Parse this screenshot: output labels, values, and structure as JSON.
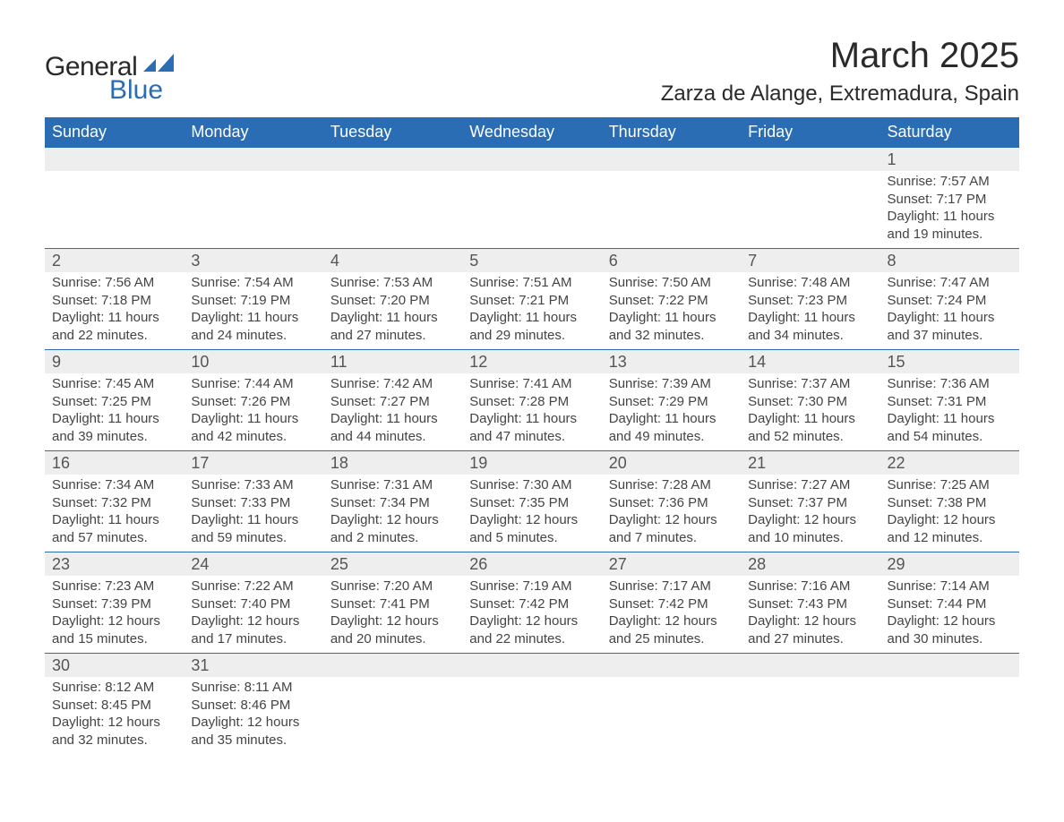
{
  "logo": {
    "text_general": "General",
    "text_blue": "Blue",
    "shape_color": "#2a6db5"
  },
  "title": "March 2025",
  "location": "Zarza de Alange, Extremadura, Spain",
  "colors": {
    "header_bg": "#2a6db5",
    "header_text": "#ffffff",
    "daynum_bg": "#eeeeee",
    "text": "#444444",
    "border": "#2a6db5"
  },
  "typography": {
    "title_fontsize": 40,
    "location_fontsize": 24,
    "weekday_fontsize": 18,
    "daynum_fontsize": 18,
    "content_fontsize": 15
  },
  "weekdays": [
    "Sunday",
    "Monday",
    "Tuesday",
    "Wednesday",
    "Thursday",
    "Friday",
    "Saturday"
  ],
  "weeks": [
    [
      null,
      null,
      null,
      null,
      null,
      null,
      {
        "day": "1",
        "sunrise": "Sunrise: 7:57 AM",
        "sunset": "Sunset: 7:17 PM",
        "daylight1": "Daylight: 11 hours",
        "daylight2": "and 19 minutes."
      }
    ],
    [
      {
        "day": "2",
        "sunrise": "Sunrise: 7:56 AM",
        "sunset": "Sunset: 7:18 PM",
        "daylight1": "Daylight: 11 hours",
        "daylight2": "and 22 minutes."
      },
      {
        "day": "3",
        "sunrise": "Sunrise: 7:54 AM",
        "sunset": "Sunset: 7:19 PM",
        "daylight1": "Daylight: 11 hours",
        "daylight2": "and 24 minutes."
      },
      {
        "day": "4",
        "sunrise": "Sunrise: 7:53 AM",
        "sunset": "Sunset: 7:20 PM",
        "daylight1": "Daylight: 11 hours",
        "daylight2": "and 27 minutes."
      },
      {
        "day": "5",
        "sunrise": "Sunrise: 7:51 AM",
        "sunset": "Sunset: 7:21 PM",
        "daylight1": "Daylight: 11 hours",
        "daylight2": "and 29 minutes."
      },
      {
        "day": "6",
        "sunrise": "Sunrise: 7:50 AM",
        "sunset": "Sunset: 7:22 PM",
        "daylight1": "Daylight: 11 hours",
        "daylight2": "and 32 minutes."
      },
      {
        "day": "7",
        "sunrise": "Sunrise: 7:48 AM",
        "sunset": "Sunset: 7:23 PM",
        "daylight1": "Daylight: 11 hours",
        "daylight2": "and 34 minutes."
      },
      {
        "day": "8",
        "sunrise": "Sunrise: 7:47 AM",
        "sunset": "Sunset: 7:24 PM",
        "daylight1": "Daylight: 11 hours",
        "daylight2": "and 37 minutes."
      }
    ],
    [
      {
        "day": "9",
        "sunrise": "Sunrise: 7:45 AM",
        "sunset": "Sunset: 7:25 PM",
        "daylight1": "Daylight: 11 hours",
        "daylight2": "and 39 minutes."
      },
      {
        "day": "10",
        "sunrise": "Sunrise: 7:44 AM",
        "sunset": "Sunset: 7:26 PM",
        "daylight1": "Daylight: 11 hours",
        "daylight2": "and 42 minutes."
      },
      {
        "day": "11",
        "sunrise": "Sunrise: 7:42 AM",
        "sunset": "Sunset: 7:27 PM",
        "daylight1": "Daylight: 11 hours",
        "daylight2": "and 44 minutes."
      },
      {
        "day": "12",
        "sunrise": "Sunrise: 7:41 AM",
        "sunset": "Sunset: 7:28 PM",
        "daylight1": "Daylight: 11 hours",
        "daylight2": "and 47 minutes."
      },
      {
        "day": "13",
        "sunrise": "Sunrise: 7:39 AM",
        "sunset": "Sunset: 7:29 PM",
        "daylight1": "Daylight: 11 hours",
        "daylight2": "and 49 minutes."
      },
      {
        "day": "14",
        "sunrise": "Sunrise: 7:37 AM",
        "sunset": "Sunset: 7:30 PM",
        "daylight1": "Daylight: 11 hours",
        "daylight2": "and 52 minutes."
      },
      {
        "day": "15",
        "sunrise": "Sunrise: 7:36 AM",
        "sunset": "Sunset: 7:31 PM",
        "daylight1": "Daylight: 11 hours",
        "daylight2": "and 54 minutes."
      }
    ],
    [
      {
        "day": "16",
        "sunrise": "Sunrise: 7:34 AM",
        "sunset": "Sunset: 7:32 PM",
        "daylight1": "Daylight: 11 hours",
        "daylight2": "and 57 minutes."
      },
      {
        "day": "17",
        "sunrise": "Sunrise: 7:33 AM",
        "sunset": "Sunset: 7:33 PM",
        "daylight1": "Daylight: 11 hours",
        "daylight2": "and 59 minutes."
      },
      {
        "day": "18",
        "sunrise": "Sunrise: 7:31 AM",
        "sunset": "Sunset: 7:34 PM",
        "daylight1": "Daylight: 12 hours",
        "daylight2": "and 2 minutes."
      },
      {
        "day": "19",
        "sunrise": "Sunrise: 7:30 AM",
        "sunset": "Sunset: 7:35 PM",
        "daylight1": "Daylight: 12 hours",
        "daylight2": "and 5 minutes."
      },
      {
        "day": "20",
        "sunrise": "Sunrise: 7:28 AM",
        "sunset": "Sunset: 7:36 PM",
        "daylight1": "Daylight: 12 hours",
        "daylight2": "and 7 minutes."
      },
      {
        "day": "21",
        "sunrise": "Sunrise: 7:27 AM",
        "sunset": "Sunset: 7:37 PM",
        "daylight1": "Daylight: 12 hours",
        "daylight2": "and 10 minutes."
      },
      {
        "day": "22",
        "sunrise": "Sunrise: 7:25 AM",
        "sunset": "Sunset: 7:38 PM",
        "daylight1": "Daylight: 12 hours",
        "daylight2": "and 12 minutes."
      }
    ],
    [
      {
        "day": "23",
        "sunrise": "Sunrise: 7:23 AM",
        "sunset": "Sunset: 7:39 PM",
        "daylight1": "Daylight: 12 hours",
        "daylight2": "and 15 minutes."
      },
      {
        "day": "24",
        "sunrise": "Sunrise: 7:22 AM",
        "sunset": "Sunset: 7:40 PM",
        "daylight1": "Daylight: 12 hours",
        "daylight2": "and 17 minutes."
      },
      {
        "day": "25",
        "sunrise": "Sunrise: 7:20 AM",
        "sunset": "Sunset: 7:41 PM",
        "daylight1": "Daylight: 12 hours",
        "daylight2": "and 20 minutes."
      },
      {
        "day": "26",
        "sunrise": "Sunrise: 7:19 AM",
        "sunset": "Sunset: 7:42 PM",
        "daylight1": "Daylight: 12 hours",
        "daylight2": "and 22 minutes."
      },
      {
        "day": "27",
        "sunrise": "Sunrise: 7:17 AM",
        "sunset": "Sunset: 7:42 PM",
        "daylight1": "Daylight: 12 hours",
        "daylight2": "and 25 minutes."
      },
      {
        "day": "28",
        "sunrise": "Sunrise: 7:16 AM",
        "sunset": "Sunset: 7:43 PM",
        "daylight1": "Daylight: 12 hours",
        "daylight2": "and 27 minutes."
      },
      {
        "day": "29",
        "sunrise": "Sunrise: 7:14 AM",
        "sunset": "Sunset: 7:44 PM",
        "daylight1": "Daylight: 12 hours",
        "daylight2": "and 30 minutes."
      }
    ],
    [
      {
        "day": "30",
        "sunrise": "Sunrise: 8:12 AM",
        "sunset": "Sunset: 8:45 PM",
        "daylight1": "Daylight: 12 hours",
        "daylight2": "and 32 minutes."
      },
      {
        "day": "31",
        "sunrise": "Sunrise: 8:11 AM",
        "sunset": "Sunset: 8:46 PM",
        "daylight1": "Daylight: 12 hours",
        "daylight2": "and 35 minutes."
      },
      null,
      null,
      null,
      null,
      null
    ]
  ]
}
